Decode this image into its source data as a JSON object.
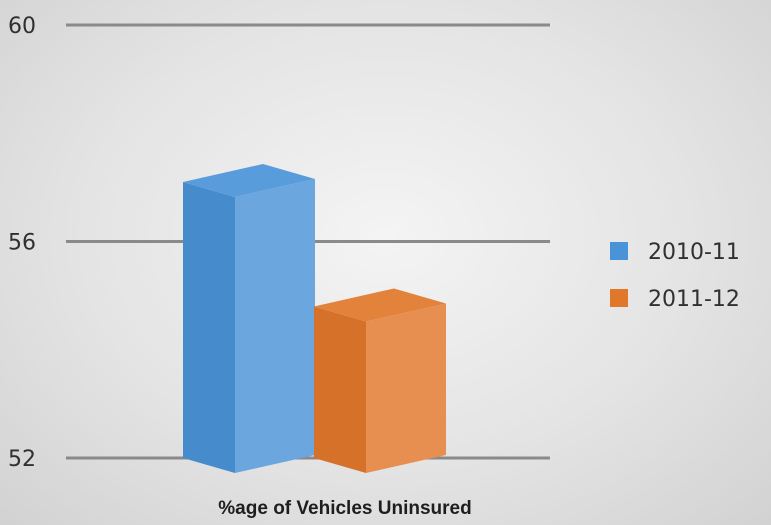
{
  "chart_data": {
    "type": "bar",
    "categories": [
      "%age of Vehicles Uninsured"
    ],
    "series": [
      {
        "name": "2010-11",
        "values": [
          57.1
        ],
        "color": "#4a93d8"
      },
      {
        "name": "2011-12",
        "values": [
          54.8
        ],
        "color": "#e0772a"
      }
    ],
    "title": "",
    "xlabel": "%age of Vehicles Uninsured",
    "ylabel": "",
    "ylim": [
      52,
      60
    ],
    "yticks": [
      "60",
      "56",
      "52"
    ],
    "grid": true,
    "legend": "right",
    "style": "3d"
  }
}
